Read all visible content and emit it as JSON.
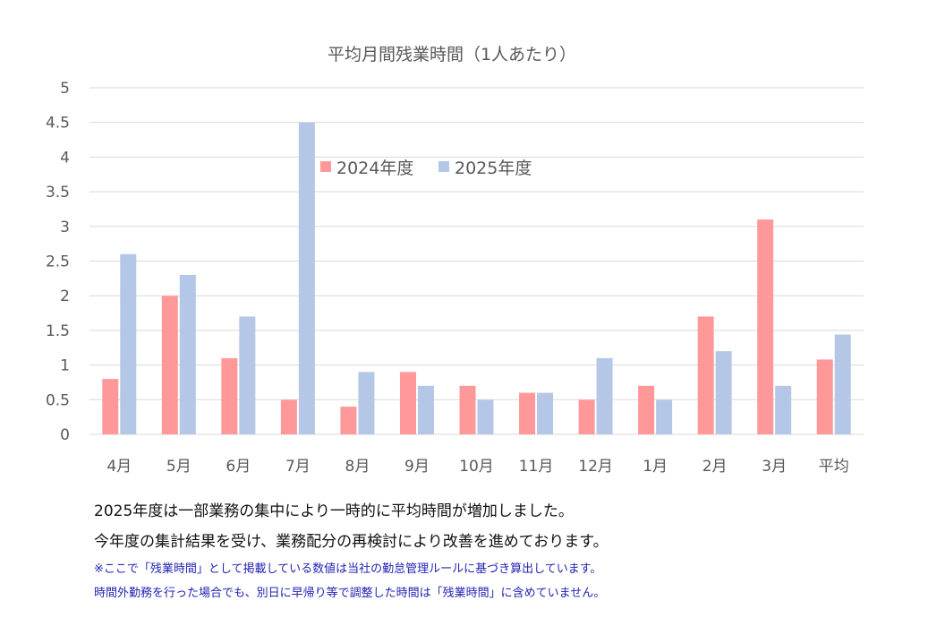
{
  "chart_data": {
    "type": "bar",
    "title": "平均月間残業時間（1人あたり）",
    "categories": [
      "4月",
      "5月",
      "6月",
      "7月",
      "8月",
      "9月",
      "10月",
      "11月",
      "12月",
      "1月",
      "2月",
      "3月",
      "平均"
    ],
    "series": [
      {
        "name": "2024年度",
        "color": "#ff9999",
        "values": [
          0.8,
          2.0,
          1.1,
          0.5,
          0.4,
          0.9,
          0.7,
          0.6,
          0.5,
          0.7,
          1.7,
          3.1,
          1.08
        ]
      },
      {
        "name": "2025年度",
        "color": "#b4c7e7",
        "values": [
          2.6,
          2.3,
          1.7,
          4.5,
          0.9,
          0.7,
          0.5,
          0.6,
          1.1,
          0.5,
          1.2,
          0.7,
          1.44
        ]
      }
    ],
    "yticks": [
      "0",
      "0.5",
      "1",
      "1.5",
      "2",
      "2.5",
      "3",
      "3.5",
      "4",
      "4.5",
      "5"
    ],
    "ylim": [
      0,
      5
    ],
    "grid": true,
    "legend": "top-center inside plot"
  },
  "notes": [
    "2025年度は一部業務の集中により一時的に平均時間が増加しました。",
    "今年度の集計結果を受け、業務配分の再検討により改善を進めております。",
    "※ここで「残業時間」として掲載している数値は当社の勤怠管理ルールに基づき算出しています。",
    "時間外勤務を行った場合でも、別日に早帰り等で調整した時間は「残業時間」に含めていません。"
  ]
}
